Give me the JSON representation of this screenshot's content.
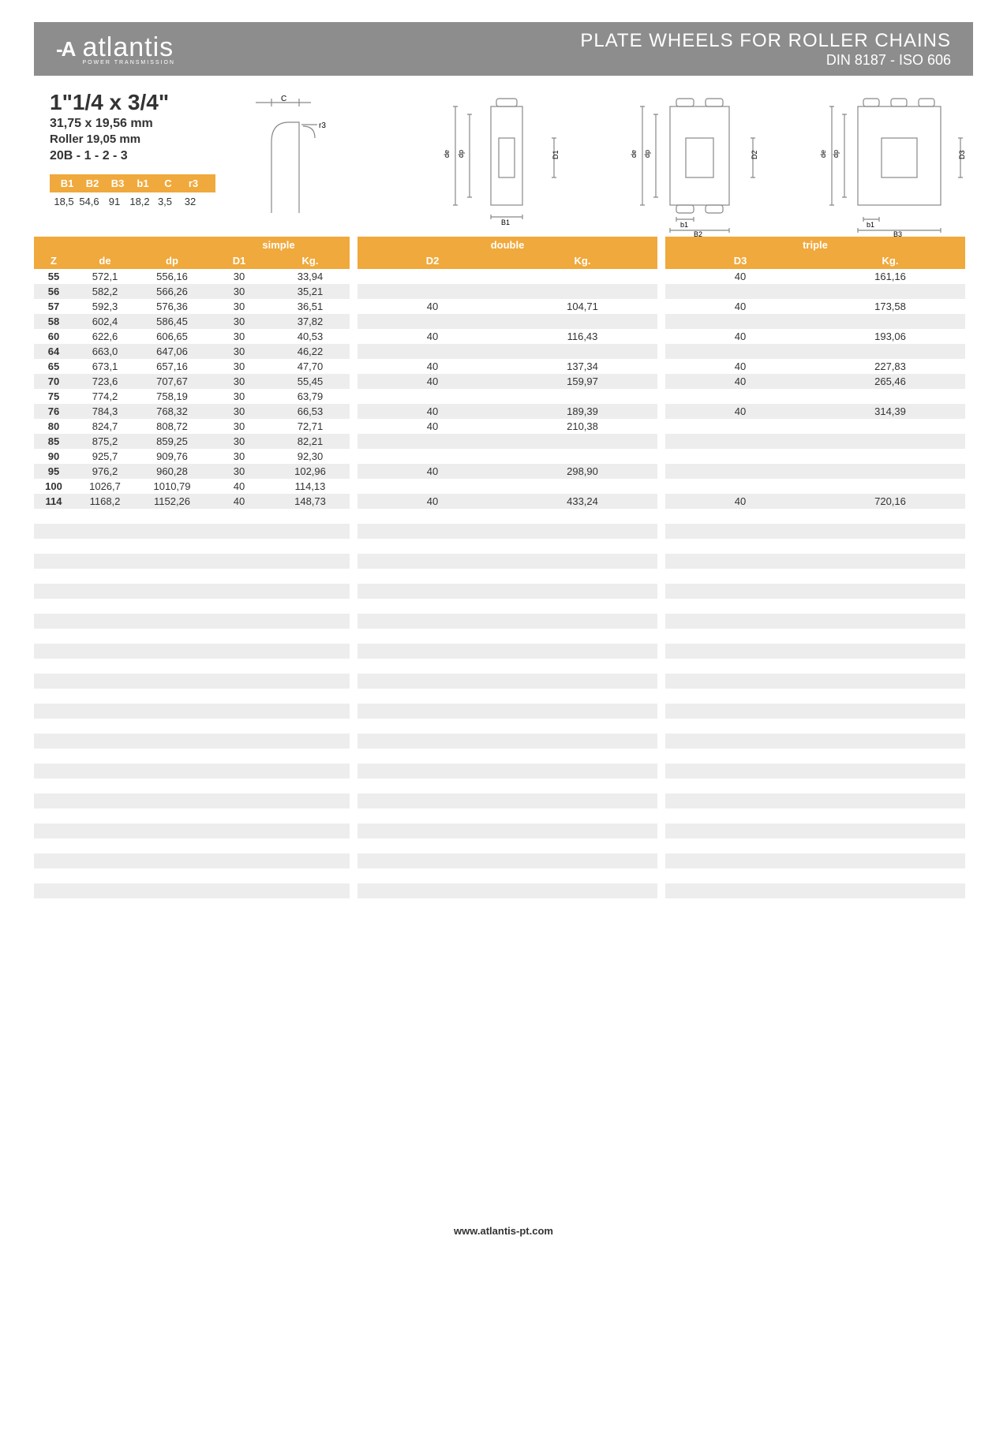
{
  "header": {
    "brand": "atlantis",
    "brand_sub": "POWER TRANSMISSION",
    "title1": "PLATE WHEELS FOR ROLLER CHAINS",
    "title2": "DIN 8187 - ISO 606"
  },
  "spec": {
    "size": "1\"1/4 x 3/4\"",
    "mm": "31,75 x 19,56 mm",
    "roller": "Roller 19,05 mm",
    "code": "20B - 1 - 2 - 3"
  },
  "mini": {
    "headers": [
      "B1",
      "B2",
      "B3",
      "b1",
      "C",
      "r3"
    ],
    "values": [
      "18,5",
      "54,6",
      "91",
      "18,2",
      "3,5",
      "32"
    ]
  },
  "diag_labels": {
    "c": "C",
    "r3": "r3",
    "de": "de",
    "dp": "dp",
    "D1": "D1",
    "D2": "D2",
    "D3": "D3",
    "B1": "B1",
    "b1": "b1",
    "B2": "B2",
    "B3": "B3"
  },
  "table": {
    "simple_label": "simple",
    "double_label": "double",
    "triple_label": "triple",
    "cols_left": [
      "Z",
      "de",
      "dp",
      "D1",
      "Kg."
    ],
    "cols_mid": [
      "D2",
      "Kg."
    ],
    "cols_right": [
      "D3",
      "Kg."
    ],
    "total_rows": 42,
    "rows": [
      {
        "z": "55",
        "de": "572,1",
        "dp": "556,16",
        "d1": "30",
        "kg1": "33,94",
        "d2": "",
        "kg2": "",
        "d3": "40",
        "kg3": "161,16"
      },
      {
        "z": "56",
        "de": "582,2",
        "dp": "566,26",
        "d1": "30",
        "kg1": "35,21",
        "d2": "",
        "kg2": "",
        "d3": "",
        "kg3": ""
      },
      {
        "z": "57",
        "de": "592,3",
        "dp": "576,36",
        "d1": "30",
        "kg1": "36,51",
        "d2": "40",
        "kg2": "104,71",
        "d3": "40",
        "kg3": "173,58"
      },
      {
        "z": "58",
        "de": "602,4",
        "dp": "586,45",
        "d1": "30",
        "kg1": "37,82",
        "d2": "",
        "kg2": "",
        "d3": "",
        "kg3": ""
      },
      {
        "z": "60",
        "de": "622,6",
        "dp": "606,65",
        "d1": "30",
        "kg1": "40,53",
        "d2": "40",
        "kg2": "116,43",
        "d3": "40",
        "kg3": "193,06"
      },
      {
        "z": "64",
        "de": "663,0",
        "dp": "647,06",
        "d1": "30",
        "kg1": "46,22",
        "d2": "",
        "kg2": "",
        "d3": "",
        "kg3": ""
      },
      {
        "z": "65",
        "de": "673,1",
        "dp": "657,16",
        "d1": "30",
        "kg1": "47,70",
        "d2": "40",
        "kg2": "137,34",
        "d3": "40",
        "kg3": "227,83"
      },
      {
        "z": "70",
        "de": "723,6",
        "dp": "707,67",
        "d1": "30",
        "kg1": "55,45",
        "d2": "40",
        "kg2": "159,97",
        "d3": "40",
        "kg3": "265,46"
      },
      {
        "z": "75",
        "de": "774,2",
        "dp": "758,19",
        "d1": "30",
        "kg1": "63,79",
        "d2": "",
        "kg2": "",
        "d3": "",
        "kg3": ""
      },
      {
        "z": "76",
        "de": "784,3",
        "dp": "768,32",
        "d1": "30",
        "kg1": "66,53",
        "d2": "40",
        "kg2": "189,39",
        "d3": "40",
        "kg3": "314,39"
      },
      {
        "z": "80",
        "de": "824,7",
        "dp": "808,72",
        "d1": "30",
        "kg1": "72,71",
        "d2": "40",
        "kg2": "210,38",
        "d3": "",
        "kg3": ""
      },
      {
        "z": "85",
        "de": "875,2",
        "dp": "859,25",
        "d1": "30",
        "kg1": "82,21",
        "d2": "",
        "kg2": "",
        "d3": "",
        "kg3": ""
      },
      {
        "z": "90",
        "de": "925,7",
        "dp": "909,76",
        "d1": "30",
        "kg1": "92,30",
        "d2": "",
        "kg2": "",
        "d3": "",
        "kg3": ""
      },
      {
        "z": "95",
        "de": "976,2",
        "dp": "960,28",
        "d1": "30",
        "kg1": "102,96",
        "d2": "40",
        "kg2": "298,90",
        "d3": "",
        "kg3": ""
      },
      {
        "z": "100",
        "de": "1026,7",
        "dp": "1010,79",
        "d1": "40",
        "kg1": "114,13",
        "d2": "",
        "kg2": "",
        "d3": "",
        "kg3": ""
      },
      {
        "z": "114",
        "de": "1168,2",
        "dp": "1152,26",
        "d1": "40",
        "kg1": "148,73",
        "d2": "40",
        "kg2": "433,24",
        "d3": "40",
        "kg3": "720,16"
      }
    ]
  },
  "footer": "www.atlantis-pt.com",
  "colors": {
    "accent": "#f0a93c",
    "header": "#8d8d8d",
    "row_alt": "#ededed"
  }
}
